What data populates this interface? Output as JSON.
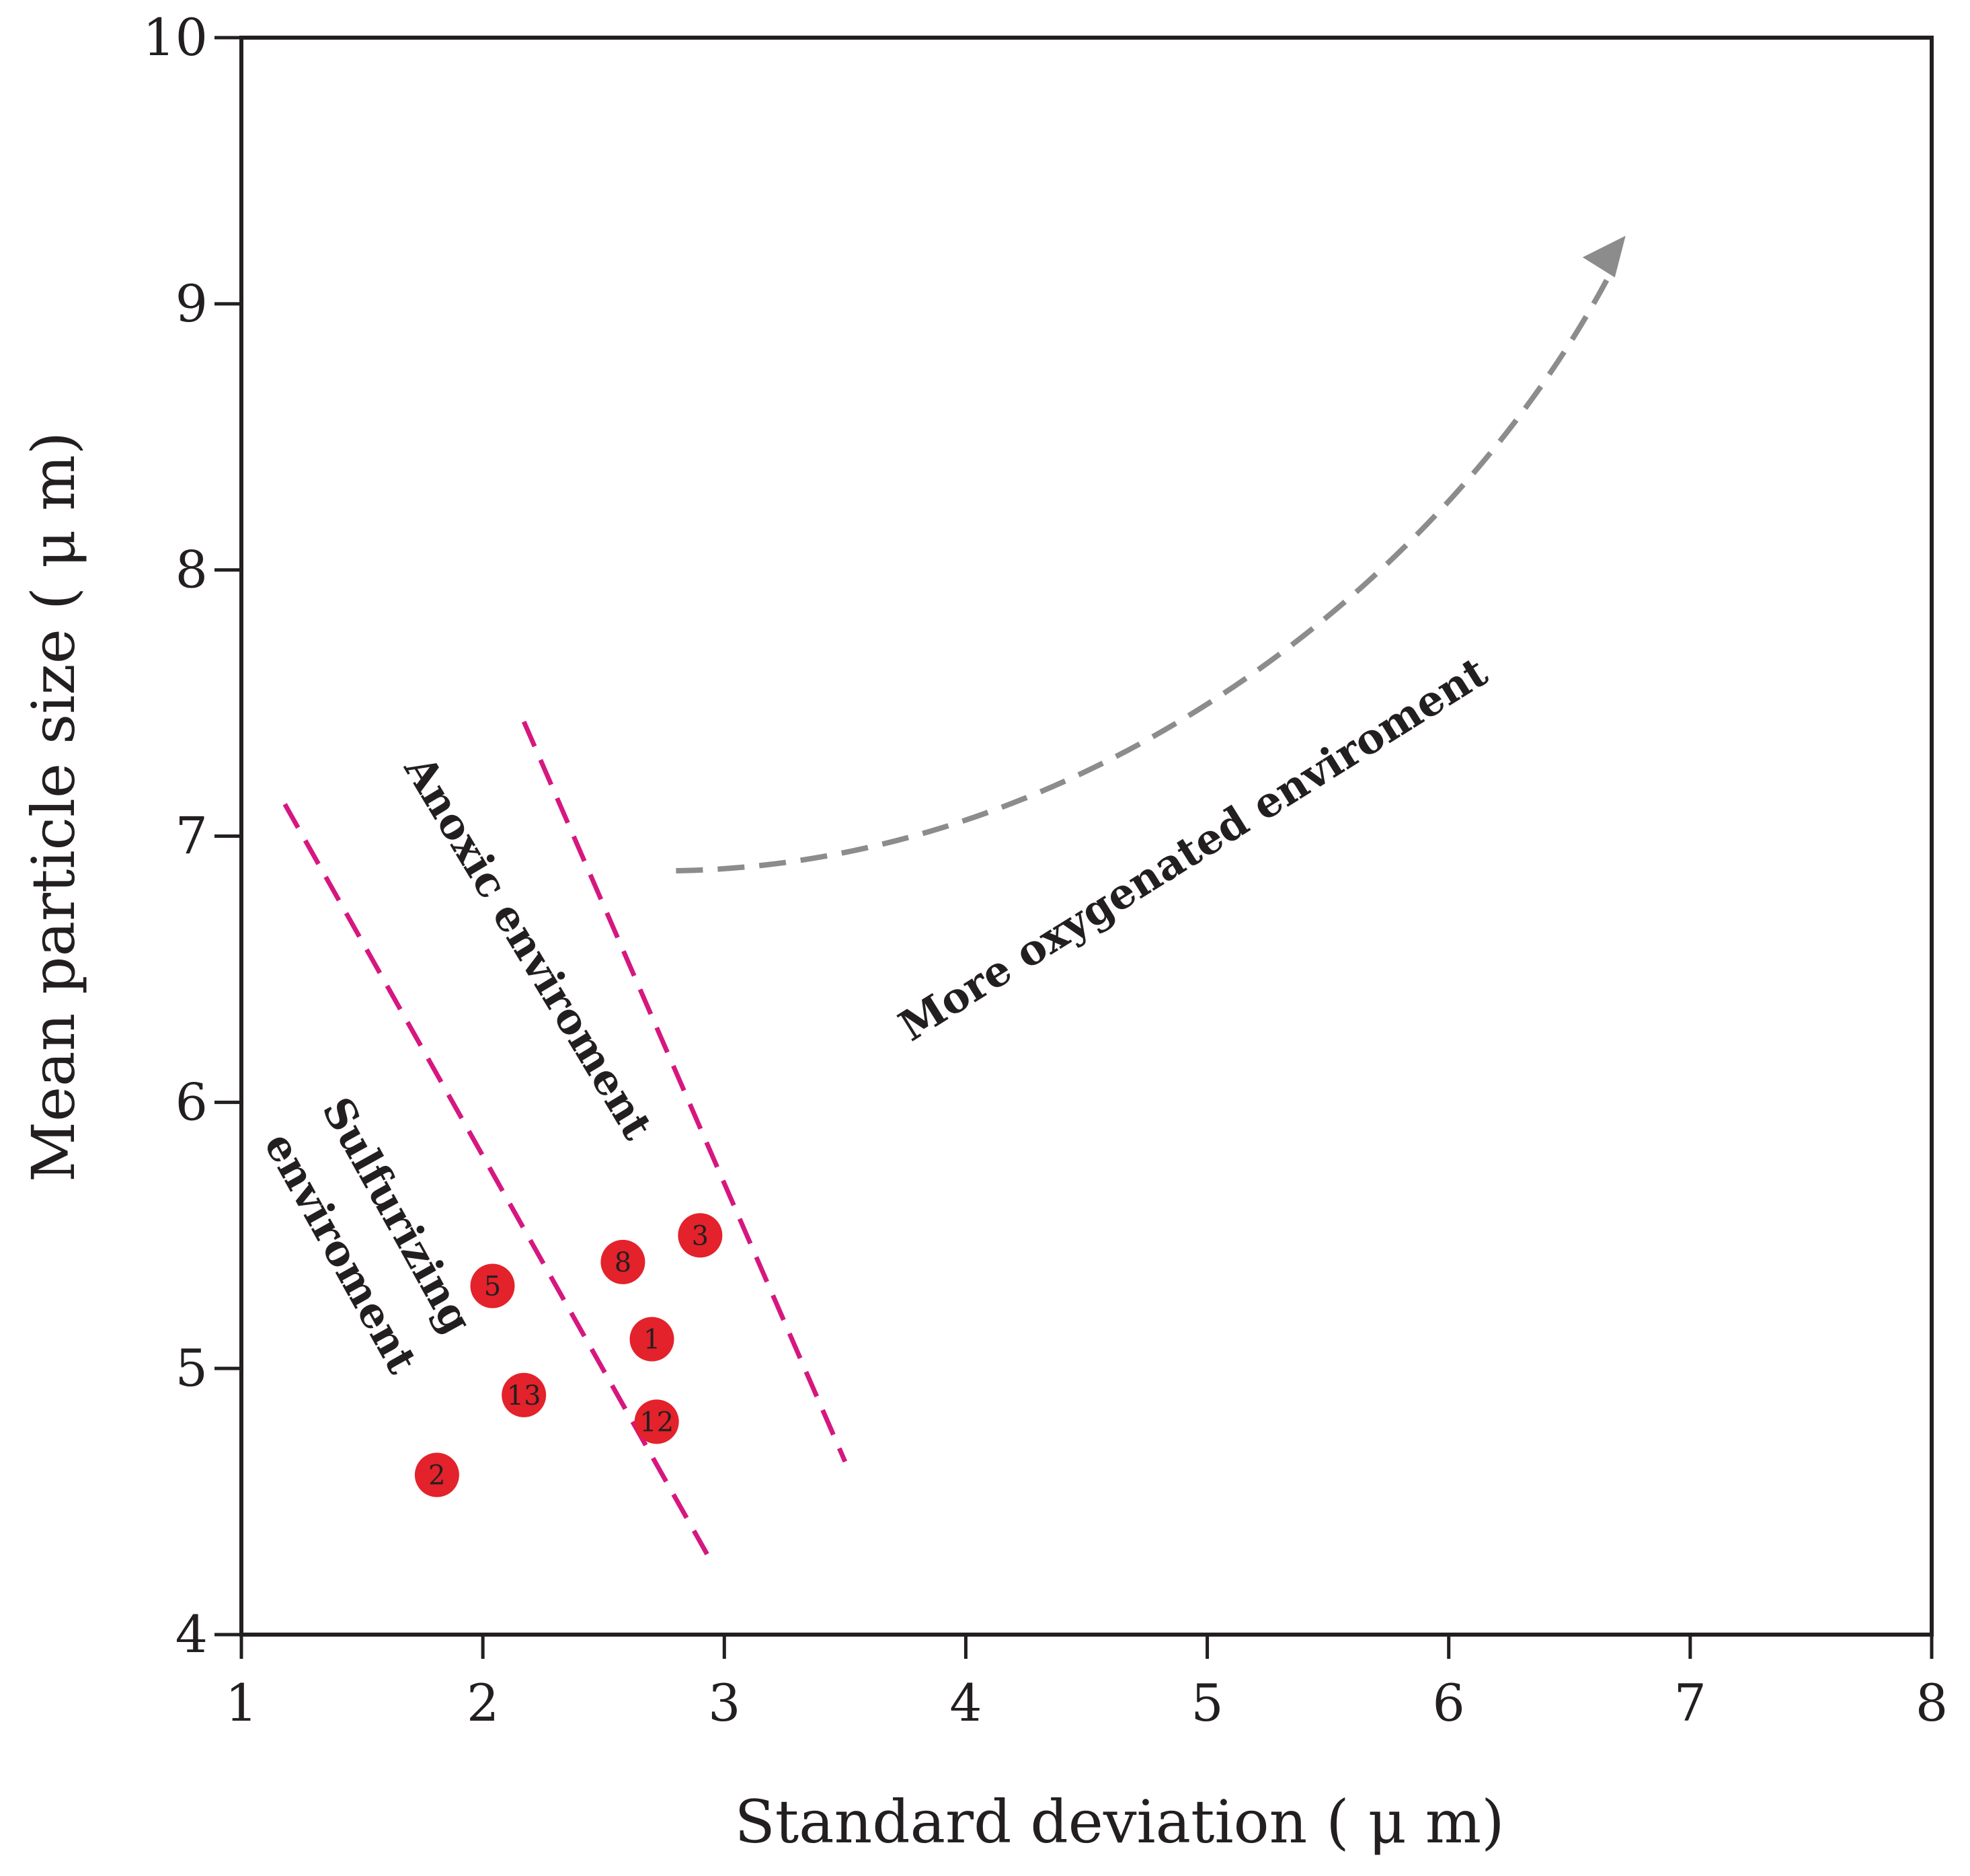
{
  "chart_data": {
    "type": "scatter",
    "title": "",
    "xlabel": "Standard deviation ( μ m)",
    "ylabel": "Mean particle size ( μ m)",
    "xlim": [
      1,
      8
    ],
    "ylim": [
      4,
      10
    ],
    "xticks": [
      1,
      2,
      3,
      4,
      5,
      6,
      7,
      8
    ],
    "yticks": [
      4,
      5,
      6,
      7,
      8,
      9,
      10
    ],
    "grid": false,
    "points": [
      {
        "label": "3",
        "x": 2.9,
        "y": 5.5
      },
      {
        "label": "8",
        "x": 2.58,
        "y": 5.4
      },
      {
        "label": "5",
        "x": 2.04,
        "y": 5.31
      },
      {
        "label": "1",
        "x": 2.7,
        "y": 5.11
      },
      {
        "label": "13",
        "x": 2.17,
        "y": 4.9
      },
      {
        "label": "12",
        "x": 2.72,
        "y": 4.8
      },
      {
        "label": "2",
        "x": 1.81,
        "y": 4.6
      }
    ],
    "boundaries": [
      {
        "name": "sulfurizing-anoxic-boundary",
        "from": [
          1.18,
          7.12
        ],
        "to": [
          2.93,
          4.3
        ]
      },
      {
        "name": "anoxic-oxygenated-boundary",
        "from": [
          2.17,
          7.43
        ],
        "to": [
          3.5,
          4.65
        ]
      }
    ],
    "trend_arrow": {
      "from": [
        2.8,
        6.87
      ],
      "to": [
        6.66,
        9.2
      ]
    },
    "annotations": [
      {
        "id": "sulfurizing",
        "lines": [
          "Sulfurizing",
          "enviroment"
        ]
      },
      {
        "id": "anoxic",
        "text": "Anoxic enviroment"
      },
      {
        "id": "oxygenated",
        "text": "More oxygenated enviroment"
      }
    ],
    "colors": {
      "point_fill": "#e3222b",
      "boundary": "#d6177f",
      "arrow": "#8c8c8c",
      "axis": "#231f20"
    }
  }
}
